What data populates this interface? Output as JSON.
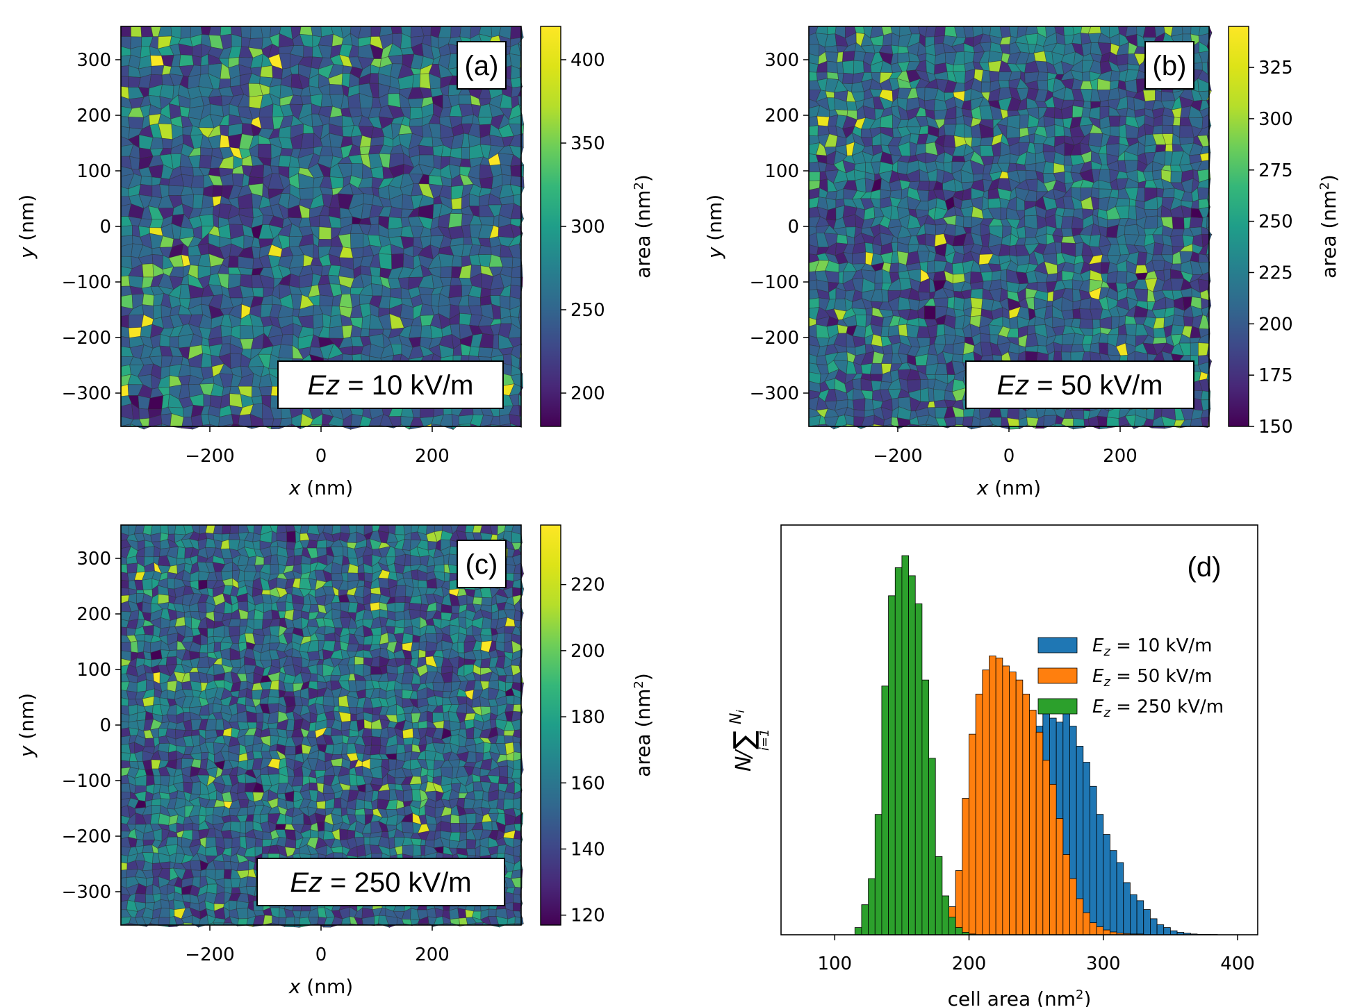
{
  "colors": {
    "ez10": "#1f77b4",
    "ez50": "#ff7f0e",
    "ez250": "#2ca02c"
  },
  "chart_data": [
    {
      "type": "heatmap",
      "panel": "(a)",
      "annotation": {
        "symbol": "Ez",
        "text": " = 10 kV/m"
      },
      "xlabel": {
        "italic": "x",
        "rest": " (nm)"
      },
      "ylabel": {
        "italic": "y",
        "rest": " (nm)"
      },
      "xlim": [
        -360,
        360
      ],
      "ylim": [
        -360,
        360
      ],
      "xticks": [
        -200,
        0,
        200
      ],
      "yticks": [
        300,
        200,
        100,
        0,
        -100,
        -200,
        -300
      ],
      "colorbar": {
        "label": "area (nm²)",
        "label_base": "area (nm",
        "label_sup": "2",
        "label_close": ")",
        "range": [
          180,
          420
        ],
        "ticks": [
          200,
          250,
          300,
          350,
          400
        ]
      }
    },
    {
      "type": "heatmap",
      "panel": "(b)",
      "annotation": {
        "symbol": "Ez",
        "text": " = 50 kV/m"
      },
      "xlabel": {
        "italic": "x",
        "rest": " (nm)"
      },
      "ylabel": {
        "italic": "y",
        "rest": " (nm)"
      },
      "xlim": [
        -360,
        360
      ],
      "ylim": [
        -360,
        360
      ],
      "xticks": [
        -200,
        0,
        200
      ],
      "yticks": [
        300,
        200,
        100,
        0,
        -100,
        -200,
        -300
      ],
      "colorbar": {
        "label": "area (nm²)",
        "label_base": "area (nm",
        "label_sup": "2",
        "label_close": ")",
        "range": [
          150,
          345
        ],
        "ticks": [
          150,
          175,
          200,
          225,
          250,
          275,
          300,
          325
        ]
      }
    },
    {
      "type": "heatmap",
      "panel": "(c)",
      "annotation": {
        "symbol": "Ez",
        "text": " = 250 kV/m"
      },
      "xlabel": {
        "italic": "x",
        "rest": " (nm)"
      },
      "ylabel": {
        "italic": "y",
        "rest": " (nm)"
      },
      "xlim": [
        -360,
        360
      ],
      "ylim": [
        -360,
        360
      ],
      "xticks": [
        -200,
        0,
        200
      ],
      "yticks": [
        300,
        200,
        100,
        0,
        -100,
        -200,
        -300
      ],
      "colorbar": {
        "label": "area (nm²)",
        "label_base": "area (nm",
        "label_sup": "2",
        "label_close": ")",
        "range": [
          117,
          238
        ],
        "ticks": [
          120,
          140,
          160,
          180,
          200,
          220
        ]
      }
    },
    {
      "type": "bar",
      "subtype": "histogram",
      "panel": "(d)",
      "xlabel": {
        "base": "cell area (nm",
        "sup": "2",
        "close": ")"
      },
      "ylabel": {
        "N": "N",
        "slash": "/",
        "sum": "∑",
        "lower": "i=1",
        "upper": "N",
        "upper_sub": "i"
      },
      "xlim": [
        60,
        415
      ],
      "ylim": [
        0,
        1
      ],
      "xticks": [
        100,
        200,
        300,
        400
      ],
      "bin_width": 5,
      "legend_position": "upper-right",
      "series": [
        {
          "name": "Ez = 10 kV/m",
          "legend": {
            "E": "E",
            "sub": "z",
            "rest": " = 10 kV/m"
          },
          "color_key": "ez10",
          "start": 175,
          "values": [
            0.003,
            0.006,
            0.01,
            0.016,
            0.024,
            0.035,
            0.048,
            0.065,
            0.09,
            0.12,
            0.17,
            0.23,
            0.31,
            0.39,
            0.45,
            0.52,
            0.56,
            0.54,
            0.53,
            0.56,
            0.52,
            0.47,
            0.43,
            0.37,
            0.3,
            0.25,
            0.21,
            0.18,
            0.13,
            0.1,
            0.085,
            0.063,
            0.04,
            0.025,
            0.018,
            0.01,
            0.006,
            0.004,
            0.002,
            0.001,
            0.001,
            0.0008
          ]
        },
        {
          "name": "Ez = 50 kV/m",
          "legend": {
            "E": "E",
            "sub": "z",
            "rest": " = 50 kV/m"
          },
          "color_key": "ez50",
          "start": 170,
          "values": [
            0.006,
            0.012,
            0.032,
            0.07,
            0.16,
            0.34,
            0.5,
            0.6,
            0.66,
            0.695,
            0.69,
            0.67,
            0.655,
            0.635,
            0.6,
            0.56,
            0.505,
            0.435,
            0.375,
            0.29,
            0.2,
            0.14,
            0.09,
            0.055,
            0.03,
            0.02,
            0.012,
            0.007,
            0.004,
            0.003,
            0.002,
            0.002
          ]
        },
        {
          "name": "Ez = 250 kV/m",
          "legend": {
            "E": "E",
            "sub": "z",
            "rest": " = 250 kV/m"
          },
          "color_key": "ez250",
          "start": 115,
          "values": [
            0.018,
            0.075,
            0.14,
            0.3,
            0.62,
            0.845,
            0.915,
            0.945,
            0.895,
            0.825,
            0.635,
            0.44,
            0.195,
            0.097,
            0.044,
            0.018,
            0.006,
            0.002
          ]
        }
      ]
    }
  ]
}
